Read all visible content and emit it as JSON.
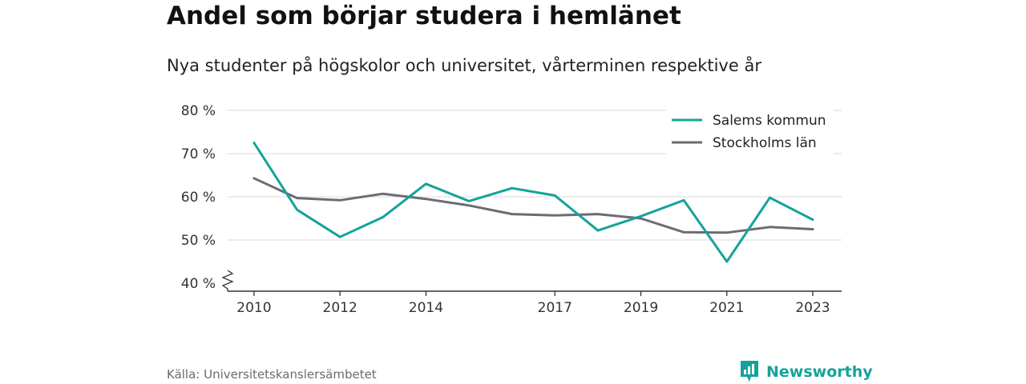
{
  "title": "Andel som börjar studera i hemlänet",
  "subtitle": "Nya studenter på högskolor och universitet, vårterminen respektive år",
  "source": "Källa: Universitetskanslersämbetet",
  "brand": {
    "name": "Newsworthy",
    "icon": "newsworthy-logo-icon",
    "color": "#14a39a"
  },
  "chart_data": {
    "type": "line",
    "x": [
      2010,
      2011,
      2012,
      2013,
      2014,
      2015,
      2016,
      2017,
      2018,
      2019,
      2020,
      2021,
      2022,
      2023
    ],
    "x_tick_labels": [
      "2010",
      "2012",
      "2014",
      "2017",
      "2019",
      "2021",
      "2023"
    ],
    "y_tick_labels": [
      "40 %",
      "50 %",
      "60 %",
      "70 %",
      "80 %"
    ],
    "ylim": [
      40,
      80
    ],
    "y_axis_break": true,
    "grid": true,
    "legend_position": "top-right",
    "series": [
      {
        "name": "Salems kommun",
        "color": "#14a39a",
        "values": [
          72.5,
          57,
          50.7,
          55.3,
          63,
          59,
          62,
          60.3,
          52.2,
          55.5,
          59.2,
          45,
          59.8,
          54.7
        ]
      },
      {
        "name": "Stockholms län",
        "color": "#6e6a72",
        "values": [
          64.3,
          59.7,
          59.2,
          60.7,
          59.5,
          58,
          56,
          55.7,
          56,
          55,
          51.8,
          51.7,
          53,
          52.5
        ]
      }
    ]
  }
}
